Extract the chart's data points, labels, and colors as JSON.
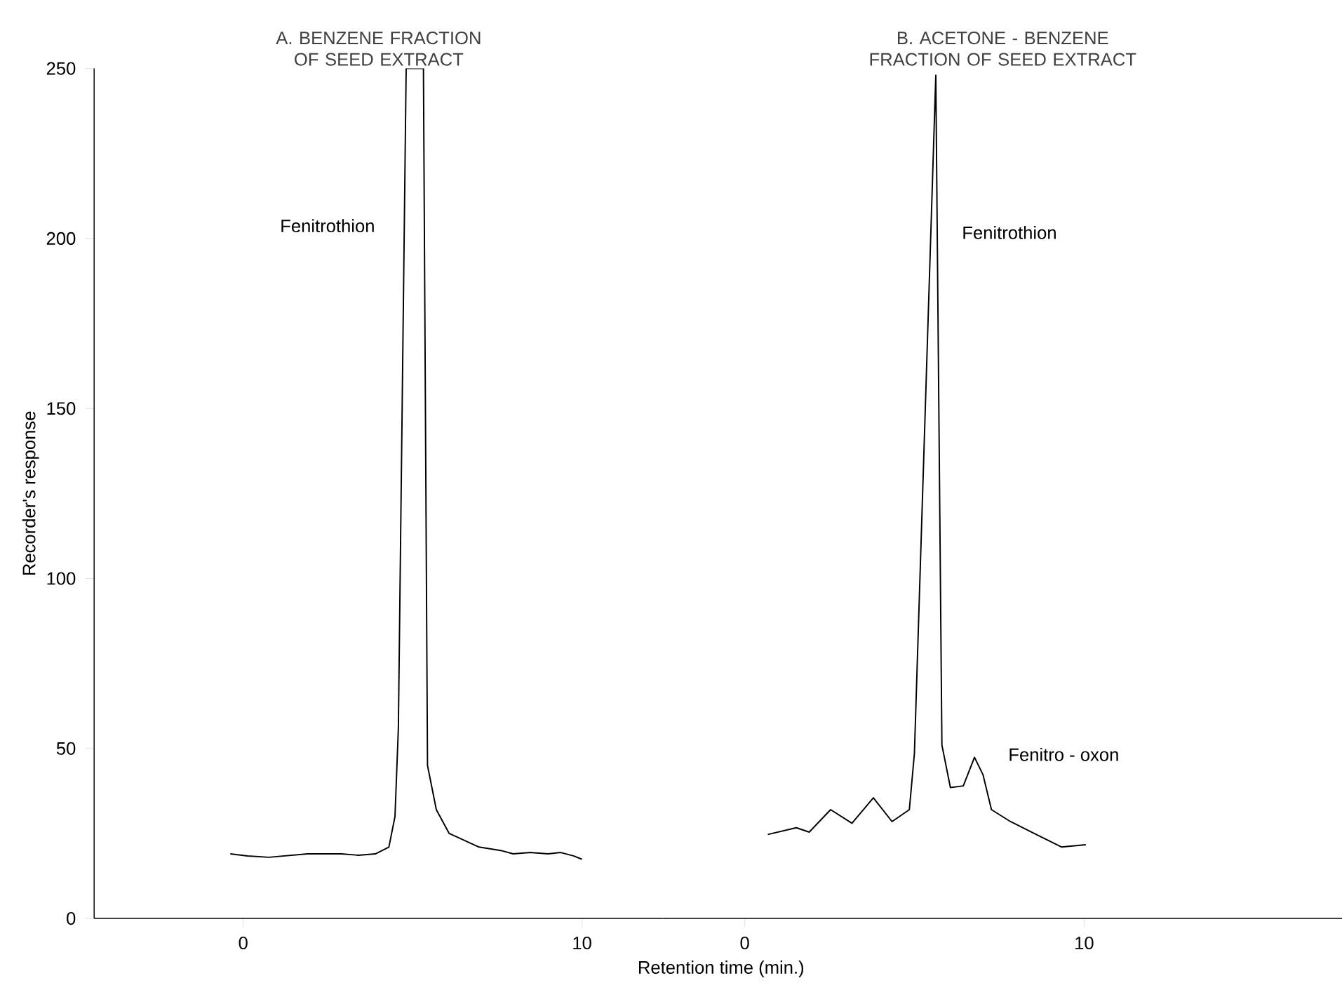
{
  "chart_data": [
    {
      "type": "line",
      "title": "A. BENZENE FRACTION OF SEED EXTRACT",
      "ylabel": "Recorder's response",
      "xlim": [
        -4.4,
        12.4
      ],
      "xticks": [
        0,
        10
      ],
      "ylim": [
        0,
        250
      ],
      "yticks": [
        0,
        50,
        100,
        150,
        200,
        250
      ],
      "series": [
        {
          "color": "#000000",
          "x": [
            -0.38,
            0.13,
            0.76,
            1.9,
            2.66,
            2.9,
            3.4,
            3.9,
            4.3,
            4.48,
            4.58,
            4.81,
            5.32,
            5.44,
            5.7,
            6.08,
            6.96,
            7.6,
            7.97,
            8.48,
            9.0,
            9.37,
            9.75,
            10.0
          ],
          "values": [
            19,
            18.4,
            18,
            19,
            19,
            19,
            18.6,
            19,
            21,
            30,
            56,
            250,
            250,
            45,
            32,
            25,
            21,
            20,
            19,
            19.4,
            19,
            19.4,
            18.4,
            17.4
          ]
        }
      ],
      "annotations": [
        "Fenitrothion"
      ]
    },
    {
      "type": "line",
      "title": "B. ACETONE - BENZENE FRACTION OF SEED EXTRACT",
      "xlabel": "Retention time (min.)",
      "xlim": [
        -2.4,
        17.6
      ],
      "xticks": [
        0,
        10
      ],
      "ylim": [
        0,
        250
      ],
      "yticks": [
        0,
        50,
        100,
        150,
        200,
        250
      ],
      "tick_labels": "x",
      "series": [
        {
          "color": "#000000",
          "x": [
            0.68,
            1.52,
            1.9,
            2.53,
            3.16,
            3.79,
            4.34,
            4.85,
            5.0,
            5.63,
            5.81,
            6.06,
            6.44,
            6.77,
            7.02,
            7.27,
            7.83,
            8.59,
            9.34,
            10.05
          ],
          "values": [
            24.7,
            26.7,
            25.4,
            32,
            28,
            35.5,
            28.5,
            32,
            48.6,
            248,
            51,
            38.5,
            39,
            47.4,
            42.3,
            32,
            28.5,
            24.7,
            21,
            21.7
          ]
        }
      ],
      "annotations": [
        "Fenitrothion",
        "Fenitro - oxon"
      ]
    }
  ]
}
